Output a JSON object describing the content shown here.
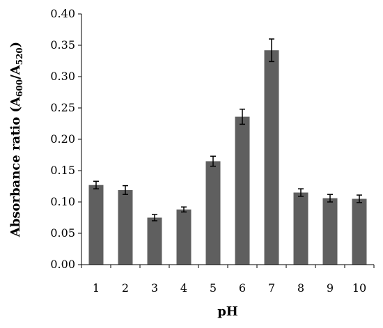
{
  "chart_data": {
    "type": "bar",
    "categories": [
      "1",
      "2",
      "3",
      "4",
      "5",
      "6",
      "7",
      "8",
      "9",
      "10"
    ],
    "series": [
      {
        "values": [
          0.127,
          0.119,
          0.075,
          0.088,
          0.165,
          0.236,
          0.342,
          0.115,
          0.106,
          0.105
        ],
        "errors": [
          0.006,
          0.007,
          0.005,
          0.004,
          0.008,
          0.012,
          0.018,
          0.006,
          0.006,
          0.006
        ]
      }
    ],
    "xlabel": "pH",
    "ylabel": {
      "prefix": "Absorbance ratio (A",
      "sub1": "600",
      "middle": "/A",
      "sub2": "520",
      "suffix": ")"
    },
    "ylim": [
      0,
      0.4
    ],
    "yticks": [
      "0.00",
      "0.05",
      "0.10",
      "0.15",
      "0.20",
      "0.25",
      "0.30",
      "0.35",
      "0.40"
    ],
    "bar_color": "#5f5f5f",
    "grid": false,
    "legend": "none"
  }
}
